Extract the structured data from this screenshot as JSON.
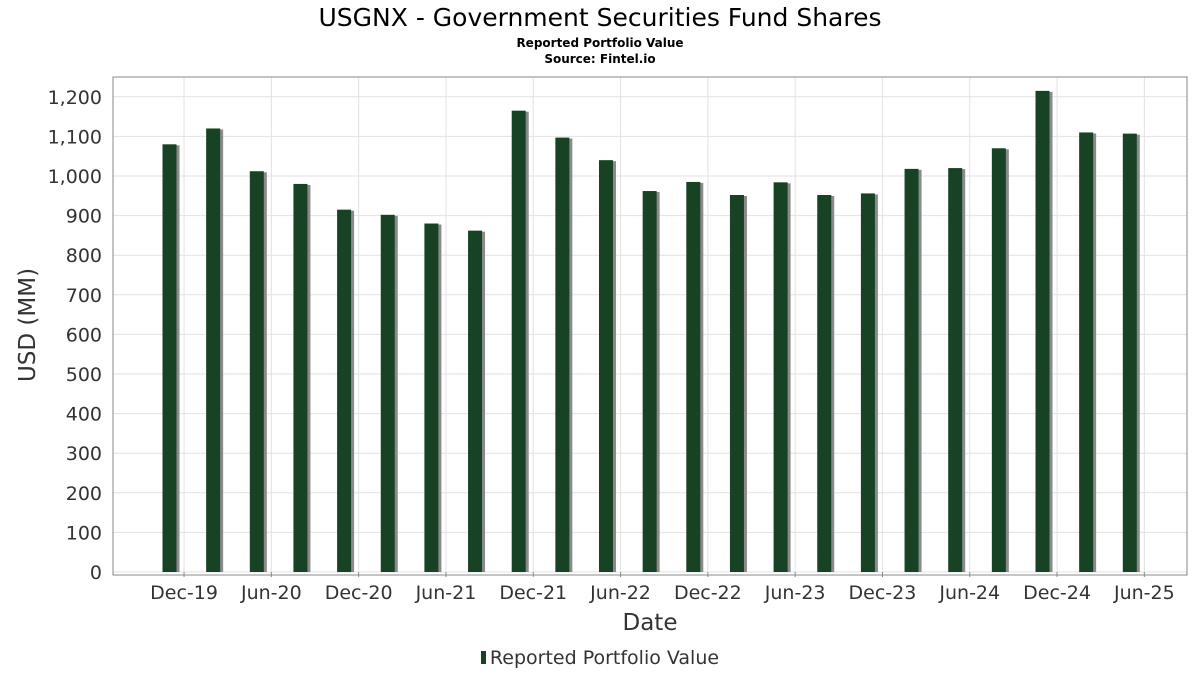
{
  "title": "USGNX - Government Securities Fund Shares",
  "subtitle": "Reported Portfolio Value",
  "source": "Source: Fintel.io",
  "colors": {
    "bar": "#174224",
    "bar_shadow": "#8a8a8a",
    "grid": "#e2e2e2",
    "axis": "#888888"
  },
  "chart_data": {
    "type": "bar",
    "title": "USGNX - Government Securities Fund Shares",
    "subtitle": "Reported Portfolio Value",
    "xlabel": "Date",
    "ylabel": "USD (MM)",
    "ylim": [
      0,
      1250
    ],
    "yticks": [
      0,
      100,
      200,
      300,
      400,
      500,
      600,
      700,
      800,
      900,
      1000,
      1100,
      1200
    ],
    "ytick_labels": [
      "0",
      "100",
      "200",
      "300",
      "400",
      "500",
      "600",
      "700",
      "800",
      "900",
      "1,000",
      "1,100",
      "1,200"
    ],
    "xticks": [
      "Dec-19",
      "Jun-20",
      "Dec-20",
      "Jun-21",
      "Dec-21",
      "Jun-22",
      "Dec-22",
      "Jun-23",
      "Dec-23",
      "Jun-24",
      "Dec-24",
      "Jun-25"
    ],
    "grid": true,
    "legend_position": "bottom-center",
    "series": [
      {
        "name": "Reported Portfolio Value",
        "x": [
          "2019-11",
          "2020-02",
          "2020-05",
          "2020-08",
          "2020-11",
          "2021-02",
          "2021-05",
          "2021-08",
          "2021-11",
          "2022-02",
          "2022-05",
          "2022-08",
          "2022-11",
          "2023-02",
          "2023-05",
          "2023-08",
          "2023-11",
          "2024-02",
          "2024-05",
          "2024-08",
          "2024-11",
          "2025-02",
          "2025-05"
        ],
        "values": [
          1080,
          1120,
          1012,
          980,
          915,
          902,
          880,
          862,
          1165,
          1097,
          1040,
          962,
          985,
          952,
          984,
          952,
          956,
          1018,
          1020,
          1070,
          1215,
          1110,
          1107
        ]
      }
    ]
  }
}
